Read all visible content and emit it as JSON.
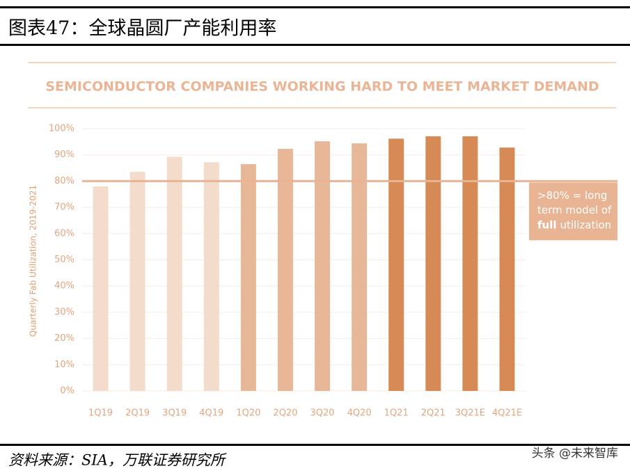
{
  "header": {
    "title": "图表47：全球晶圆厂产能利用率"
  },
  "chart_data": {
    "type": "bar",
    "title": "SEMICONDUCTOR COMPANIES WORKING HARD TO MEET MARKET DEMAND",
    "y_label": "Quarterly Fab Utilization, 2019-2021",
    "categories": [
      "1Q19",
      "2Q19",
      "3Q19",
      "4Q19",
      "1Q20",
      "2Q20",
      "3Q20",
      "4Q20",
      "1Q21",
      "2Q21",
      "3Q21E",
      "4Q21E"
    ],
    "values": [
      78,
      83.5,
      89.3,
      87.2,
      86.5,
      92.3,
      95.2,
      94.4,
      96.2,
      97.1,
      97.1,
      92.8
    ],
    "colors": [
      "#f4dccc",
      "#f4dccc",
      "#f4dccc",
      "#f4dccc",
      "#e7b798",
      "#e7b798",
      "#e7b798",
      "#e7b798",
      "#d68a56",
      "#d68a56",
      "#d68a56",
      "#d68a56"
    ],
    "ylim": [
      0,
      100
    ],
    "yticks": [
      {
        "value": 0,
        "label": "0%"
      },
      {
        "value": 10,
        "label": "10%"
      },
      {
        "value": 20,
        "label": "20%"
      },
      {
        "value": 30,
        "label": "30%"
      },
      {
        "value": 40,
        "label": "40%"
      },
      {
        "value": 50,
        "label": "50%"
      },
      {
        "value": 60,
        "label": "60%"
      },
      {
        "value": 70,
        "label": "70%"
      },
      {
        "value": 80,
        "label": "80%"
      },
      {
        "value": 90,
        "label": "90%"
      },
      {
        "value": 100,
        "label": "100%"
      }
    ],
    "grid": true,
    "reference_line": 80,
    "annotation": {
      "lines": [
        ">80% = long",
        "term model of"
      ],
      "bold": "full",
      "rest": "utilization"
    }
  },
  "footer": {
    "source": "资料来源：SIA，万联证券研究所",
    "watermark": "头条 @未来智库"
  }
}
